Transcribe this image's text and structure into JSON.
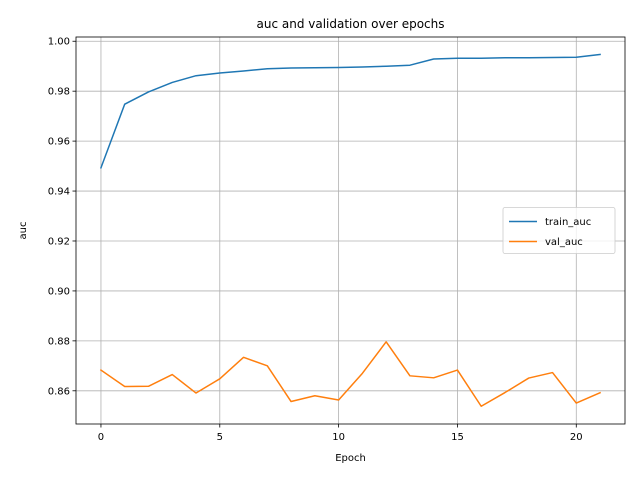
{
  "chart_data": {
    "type": "line",
    "title": "auc and validation over epochs",
    "xlabel": "Epoch",
    "ylabel": "auc",
    "xlim": [
      -1.05,
      22.05
    ],
    "ylim": [
      0.8467,
      1.0017
    ],
    "xticks": [
      0,
      5,
      10,
      15,
      20
    ],
    "yticks": [
      0.86,
      0.88,
      0.9,
      0.92,
      0.94,
      0.96,
      0.98,
      1.0
    ],
    "ytick_labels": [
      "0.86",
      "0.88",
      "0.90",
      "0.92",
      "0.94",
      "0.96",
      "0.98",
      "1.00"
    ],
    "grid": true,
    "legend_position": "center-right",
    "x": [
      0,
      1,
      2,
      3,
      4,
      5,
      6,
      7,
      8,
      9,
      10,
      11,
      12,
      13,
      14,
      15,
      16,
      17,
      18,
      19,
      20,
      21
    ],
    "series": [
      {
        "name": "train_auc",
        "color": "#1f77b4",
        "values": [
          0.9493,
          0.9748,
          0.9797,
          0.9835,
          0.9862,
          0.9873,
          0.9881,
          0.989,
          0.9893,
          0.9894,
          0.9895,
          0.9897,
          0.99,
          0.9904,
          0.9929,
          0.9932,
          0.9932,
          0.9934,
          0.9934,
          0.9935,
          0.9936,
          0.9947
        ]
      },
      {
        "name": "val_auc",
        "color": "#ff7f0e",
        "values": [
          0.8683,
          0.8617,
          0.8618,
          0.8665,
          0.8591,
          0.8648,
          0.8734,
          0.87,
          0.8557,
          0.858,
          0.8563,
          0.867,
          0.8796,
          0.866,
          0.8652,
          0.8683,
          0.8538,
          0.8593,
          0.8651,
          0.8673,
          0.8551,
          0.8592
        ]
      }
    ]
  }
}
